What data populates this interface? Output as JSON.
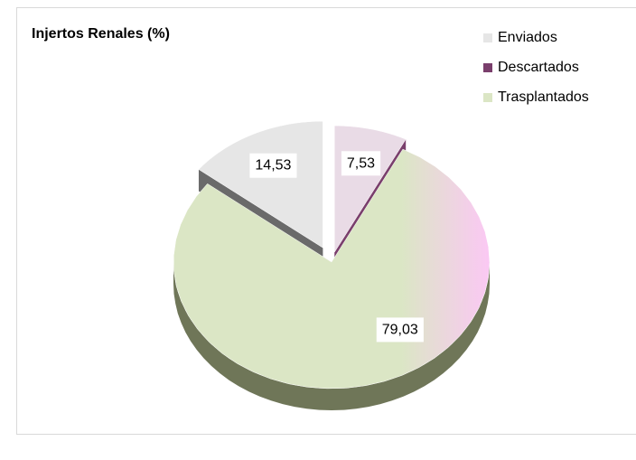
{
  "chart_data": {
    "type": "pie",
    "title": "Injertos Renales (%)",
    "categories": [
      "Enviados",
      "Descartados",
      "Trasplantados"
    ],
    "values": [
      14.53,
      7.53,
      79.03
    ],
    "value_labels": [
      "14,53",
      "7,53",
      "79,03"
    ],
    "colors": [
      "#e6e6e6",
      "#e9dbe6",
      "#dbe6c5"
    ],
    "legend": "right"
  }
}
